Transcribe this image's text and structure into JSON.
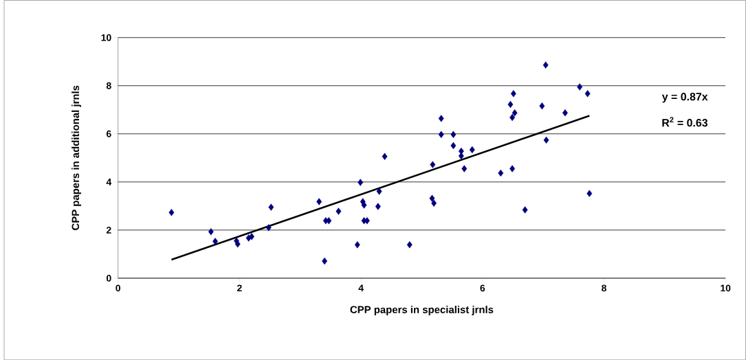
{
  "chart_data": {
    "type": "scatter",
    "xlabel": "CPP papers in specialist jrnls",
    "ylabel": "CPP papers in additional jrnls",
    "annotations": [
      "y = 0.87x",
      "R$^{2}$ = 0.63"
    ],
    "xlim": [
      0,
      10
    ],
    "ylim": [
      0,
      10
    ],
    "xticks": [
      0,
      2,
      4,
      6,
      8,
      10
    ],
    "yticks": [
      0,
      2,
      4,
      6,
      8,
      10
    ],
    "grid": "y",
    "marker": "diamond",
    "series": [
      {
        "color": "#000080",
        "x": [
          0.88,
          1.53,
          1.6,
          1.95,
          1.97,
          2.15,
          2.2,
          2.48,
          2.52,
          3.31,
          3.42,
          3.47,
          3.4,
          3.63,
          3.94,
          3.99,
          4.03,
          4.05,
          4.05,
          4.1,
          4.28,
          4.3,
          4.39,
          4.8,
          5.17,
          5.2,
          5.18,
          5.32,
          5.32,
          5.52,
          5.52,
          5.65,
          5.65,
          5.83,
          5.7,
          6.3,
          6.49,
          6.46,
          6.49,
          6.53,
          6.51,
          7.04,
          6.98,
          7.05,
          6.7,
          7.36,
          7.6,
          7.73,
          7.76
        ],
        "values": [
          2.73,
          1.93,
          1.53,
          1.55,
          1.42,
          1.67,
          1.73,
          2.1,
          2.95,
          3.18,
          2.39,
          2.39,
          0.71,
          2.78,
          1.39,
          3.98,
          3.18,
          3.04,
          2.39,
          2.39,
          2.98,
          3.61,
          5.06,
          1.39,
          3.32,
          3.12,
          4.72,
          6.64,
          5.97,
          5.97,
          5.51,
          5.28,
          5.08,
          5.34,
          4.55,
          4.37,
          4.55,
          7.22,
          6.68,
          6.87,
          7.67,
          8.86,
          7.16,
          5.74,
          2.84,
          6.87,
          7.95,
          7.67,
          3.52
        ]
      },
      {
        "type": "line",
        "color": "#000000",
        "marker": "none",
        "x": [
          0.88,
          7.76
        ],
        "values": [
          0.77,
          6.75
        ]
      }
    ]
  }
}
